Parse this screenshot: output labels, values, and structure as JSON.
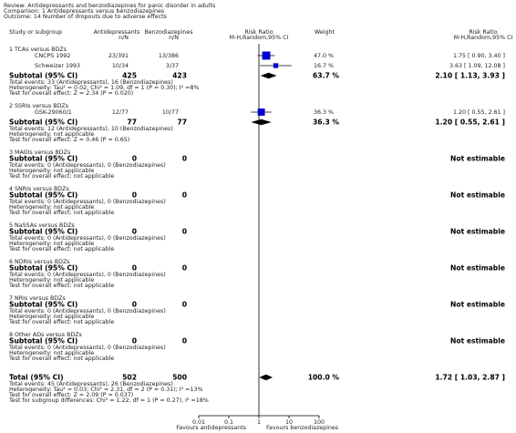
{
  "header": {
    "review": "Review:  Antidepressants and benzodiazepines for panic disorder in adults",
    "comparison": "Comparison:  1 Antidepressants versus benzodiazepines",
    "outcome": "Outcome:  14 Number of dropouts due to adverse effects"
  },
  "columns": {
    "study": "Study or subgroup",
    "group1": "Antidepressants",
    "group1_sub": "n/N",
    "group2": "Benzodiazepines",
    "group2_sub": "n/N",
    "plot": "Risk Ratio",
    "plot_sub": "M-H,Random,95% CI",
    "weight": "Weight",
    "effect": "Risk Ratio",
    "effect_sub": "M-H,Random,95% CI"
  },
  "chart_data": {
    "type": "forest",
    "xscale": "log",
    "xlim": [
      0.01,
      100
    ],
    "xticks": [
      0.01,
      0.1,
      1,
      10,
      100
    ],
    "xlabel_left": "Favours antidepressants",
    "xlabel_right": "Favours benzodiazepines",
    "square_color": "#0000cc",
    "subgroups": [
      {
        "name": "1 TCAs versus BDZs",
        "studies": [
          {
            "name": "CNCPS 1992",
            "events1": "23/391",
            "events2": "13/386",
            "rr": 1.75,
            "ci": [
              0.9,
              3.4
            ],
            "weight": 47.0,
            "weight_label": "47.0 %",
            "effect_label": "1.75 [ 0.90, 3.40 ]"
          },
          {
            "name": "Schweizer 1993",
            "events1": "10/34",
            "events2": "3/37",
            "rr": 3.63,
            "ci": [
              1.09,
              12.08
            ],
            "weight": 16.7,
            "weight_label": "16.7 %",
            "effect_label": "3.63 [ 1.09, 12.08 ]"
          }
        ],
        "subtotal": {
          "label": "Subtotal (95% CI)",
          "n1": 425,
          "n2": 423,
          "rr": 2.1,
          "ci": [
            1.13,
            3.93
          ],
          "weight": 63.7,
          "weight_label": "63.7 %",
          "effect_label": "2.10 [ 1.13, 3.93 ]"
        },
        "notes": [
          "Total events: 33 (Antidepressants), 16 (Benzodiazepines)",
          "Heterogeneity: Tau² = 0.02; Chi² = 1.09, df = 1 (P = 0.30); I² =8%",
          "Test for overall effect: Z = 2.34 (P = 0.020)"
        ]
      },
      {
        "name": "2 SSRIs versus BDZs",
        "studies": [
          {
            "name": "GSK-29060/1",
            "events1": "12/77",
            "events2": "10/77",
            "rr": 1.2,
            "ci": [
              0.55,
              2.61
            ],
            "weight": 36.3,
            "weight_label": "36.3 %",
            "effect_label": "1.20 [ 0.55, 2.61 ]"
          }
        ],
        "subtotal": {
          "label": "Subtotal (95% CI)",
          "n1": 77,
          "n2": 77,
          "rr": 1.2,
          "ci": [
            0.55,
            2.61
          ],
          "weight": 36.3,
          "weight_label": "36.3 %",
          "effect_label": "1.20 [ 0.55, 2.61 ]"
        },
        "notes": [
          "Total events: 12 (Antidepressants), 10 (Benzodiazepines)",
          "Heterogeneity: not applicable",
          "Test for overall effect: Z = 0.46 (P = 0.65)"
        ]
      },
      {
        "name": "3 MAOIs versus BDZs",
        "studies": [],
        "subtotal": {
          "label": "Subtotal (95% CI)",
          "n1": 0,
          "n2": 0,
          "effect_label": "Not estimable"
        },
        "notes": [
          "Total events: 0 (Antidepressants), 0 (Benzodiazepines)",
          "Heterogeneity: not applicable",
          "Test for overall effect: not applicable"
        ]
      },
      {
        "name": "4 SNRIs versus BDZs",
        "studies": [],
        "subtotal": {
          "label": "Subtotal (95% CI)",
          "n1": 0,
          "n2": 0,
          "effect_label": "Not estimable"
        },
        "notes": [
          "Total events: 0 (Antidepressants), 0 (Benzodiazepines)",
          "Heterogeneity: not applicable",
          "Test for overall effect: not applicable"
        ]
      },
      {
        "name": "5 NaSSAs versus BDZs",
        "studies": [],
        "subtotal": {
          "label": "Subtotal (95% CI)",
          "n1": 0,
          "n2": 0,
          "effect_label": "Not estimable"
        },
        "notes": [
          "Total events: 0 (Antidepressants), 0 (Benzodiazepines)",
          "Heterogeneity: not applicable",
          "Test for overall effect: not applicable"
        ]
      },
      {
        "name": "6 NDRIs versus BDZs",
        "studies": [],
        "subtotal": {
          "label": "Subtotal (95% CI)",
          "n1": 0,
          "n2": 0,
          "effect_label": "Not estimable"
        },
        "notes": [
          "Total events: 0 (Antidepressants), 0 (Benzodiazepines)",
          "Heterogeneity: not applicable",
          "Test for overall effect: not applicable"
        ]
      },
      {
        "name": "7 NRIs versus BDZs",
        "studies": [],
        "subtotal": {
          "label": "Subtotal (95% CI)",
          "n1": 0,
          "n2": 0,
          "effect_label": "Not estimable"
        },
        "notes": [
          "Total events: 0 (Antidepressants), 0 (Benzodiazepines)",
          "Heterogeneity: not applicable",
          "Test for overall effect: not applicable"
        ]
      },
      {
        "name": "8 Other ADs versus BDZs",
        "studies": [],
        "subtotal": {
          "label": "Subtotal (95% CI)",
          "n1": 0,
          "n2": 0,
          "effect_label": "Not estimable"
        },
        "notes": [
          "Total events: 0 (Antidepressants), 0 (Benzodiazepines)",
          "Heterogeneity: not applicable",
          "Test for overall effect: not applicable"
        ]
      }
    ],
    "total": {
      "label": "Total (95% CI)",
      "n1": 502,
      "n2": 500,
      "rr": 1.72,
      "ci": [
        1.03,
        2.87
      ],
      "weight": 100.0,
      "weight_label": "100.0 %",
      "effect_label": "1.72 [ 1.03, 2.87 ]",
      "notes": [
        "Total events: 45 (Antidepressants), 26 (Benzodiazepines)",
        "Heterogeneity: Tau² = 0.03; Chi² = 2.31, df = 2 (P = 0.31); I² =13%",
        "Test for overall effect: Z = 2.09 (P = 0.037)",
        "Test for subgroup differences: Chi² = 1.22, df = 1 (P = 0.27), I² =18%"
      ]
    }
  }
}
